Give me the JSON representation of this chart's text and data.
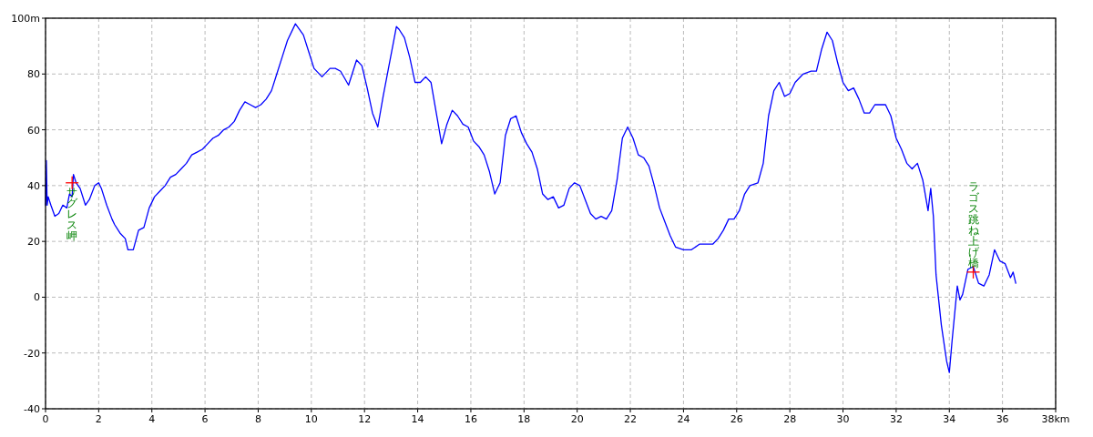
{
  "chart_data": {
    "type": "line",
    "xlim": [
      0,
      38
    ],
    "xticks": [
      0,
      2,
      4,
      6,
      8,
      10,
      12,
      14,
      16,
      18,
      20,
      22,
      24,
      26,
      28,
      30,
      32,
      34,
      36,
      {
        "value": 38,
        "label": "38km"
      }
    ],
    "ylim": [
      -40,
      100
    ],
    "yticks": [
      -40,
      -20,
      0,
      20,
      40,
      60,
      80,
      {
        "value": 100,
        "label": "100m"
      }
    ],
    "grid": true,
    "marker": "none",
    "line_style": "solid",
    "annotations": [
      {
        "text": "サグレス岬",
        "x": 1.0,
        "y": 41
      },
      {
        "text": "ラゴス跳ね上げ橋",
        "x": 34.9,
        "y": 9
      }
    ],
    "series": [
      {
        "color": "#0000ff",
        "x": [
          0,
          0.03,
          0.06,
          0.1,
          0.2,
          0.35,
          0.5,
          0.65,
          0.8,
          0.9,
          1.0,
          1.05,
          1.15,
          1.3,
          1.5,
          1.65,
          1.85,
          2.0,
          2.1,
          2.3,
          2.5,
          2.6,
          2.8,
          3.0,
          3.1,
          3.3,
          3.5,
          3.7,
          3.9,
          4.1,
          4.3,
          4.5,
          4.7,
          4.9,
          5.1,
          5.3,
          5.5,
          5.7,
          5.9,
          6.1,
          6.3,
          6.5,
          6.7,
          6.9,
          7.1,
          7.3,
          7.5,
          7.7,
          7.9,
          8.1,
          8.3,
          8.5,
          8.7,
          8.9,
          9.1,
          9.4,
          9.7,
          9.9,
          10.1,
          10.4,
          10.7,
          10.9,
          11.1,
          11.4,
          11.7,
          11.9,
          12.1,
          12.3,
          12.5,
          12.7,
          12.9,
          13.1,
          13.2,
          13.3,
          13.5,
          13.7,
          13.9,
          14.1,
          14.3,
          14.5,
          14.7,
          14.9,
          15.1,
          15.3,
          15.5,
          15.7,
          15.9,
          16.1,
          16.3,
          16.5,
          16.7,
          16.9,
          17.1,
          17.3,
          17.5,
          17.7,
          17.9,
          18.1,
          18.3,
          18.5,
          18.7,
          18.9,
          19.1,
          19.3,
          19.5,
          19.7,
          19.9,
          20.1,
          20.3,
          20.5,
          20.7,
          20.9,
          21.1,
          21.3,
          21.5,
          21.7,
          21.9,
          22.1,
          22.3,
          22.5,
          22.7,
          22.9,
          23.1,
          23.3,
          23.5,
          23.7,
          24.0,
          24.3,
          24.6,
          24.9,
          25.1,
          25.3,
          25.5,
          25.7,
          25.9,
          26.1,
          26.3,
          26.5,
          26.8,
          27.0,
          27.2,
          27.4,
          27.6,
          27.8,
          28.0,
          28.2,
          28.5,
          28.8,
          29.0,
          29.2,
          29.4,
          29.6,
          29.8,
          30.0,
          30.2,
          30.4,
          30.6,
          30.8,
          31.0,
          31.2,
          31.4,
          31.6,
          31.8,
          32.0,
          32.2,
          32.4,
          32.6,
          32.8,
          33.0,
          33.2,
          33.3,
          33.4,
          33.5,
          33.7,
          33.9,
          34.0,
          34.1,
          34.3,
          34.4,
          34.5,
          34.7,
          34.9,
          35.1,
          35.3,
          35.5,
          35.7,
          35.9,
          36.1,
          36.3,
          36.4,
          36.5
        ],
        "values": [
          33,
          49,
          33,
          36,
          33,
          29,
          30,
          33,
          32,
          37,
          36,
          44,
          41,
          39,
          33,
          35,
          40,
          41,
          39,
          33,
          28,
          26,
          23,
          21,
          17,
          17,
          24,
          25,
          32,
          36,
          38,
          40,
          43,
          44,
          46,
          48,
          51,
          52,
          53,
          55,
          57,
          58,
          60,
          61,
          63,
          67,
          70,
          69,
          68,
          69,
          71,
          74,
          80,
          86,
          92,
          98,
          94,
          88,
          82,
          79,
          82,
          82,
          81,
          76,
          85,
          83,
          75,
          66,
          61,
          72,
          82,
          92,
          97,
          96,
          93,
          86,
          77,
          77,
          79,
          77,
          66,
          55,
          62,
          67,
          65,
          62,
          61,
          56,
          54,
          51,
          45,
          37,
          41,
          58,
          64,
          65,
          59,
          55,
          52,
          46,
          37,
          35,
          36,
          32,
          33,
          39,
          41,
          40,
          35,
          30,
          28,
          29,
          28,
          31,
          42,
          57,
          61,
          57,
          51,
          50,
          47,
          40,
          32,
          27,
          22,
          18,
          17,
          17,
          19,
          19,
          19,
          21,
          24,
          28,
          28,
          31,
          37,
          40,
          41,
          48,
          65,
          74,
          77,
          72,
          73,
          77,
          80,
          81,
          81,
          89,
          95,
          92,
          84,
          77,
          74,
          75,
          71,
          66,
          66,
          69,
          69,
          69,
          65,
          57,
          53,
          48,
          46,
          48,
          42,
          31,
          39,
          29,
          8,
          -10,
          -23,
          -27,
          -16,
          4,
          -1,
          1,
          10,
          11,
          5,
          4,
          8,
          17,
          13,
          12,
          7,
          9,
          5
        ]
      }
    ]
  }
}
